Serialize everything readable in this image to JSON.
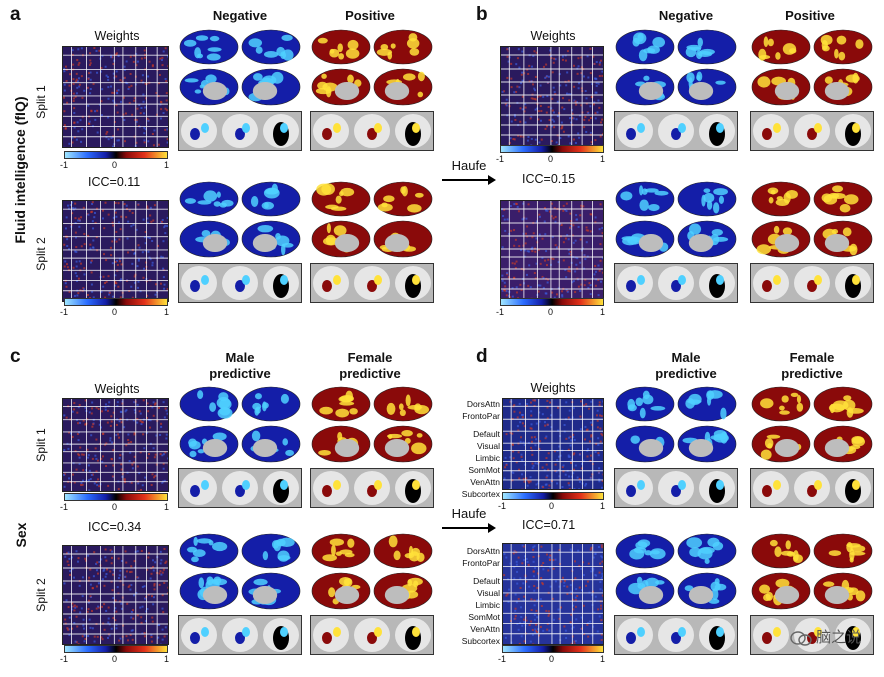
{
  "panels": [
    {
      "letter": "a",
      "col_heads": [
        "Negative",
        "Positive"
      ],
      "weights_title": "Weights",
      "icc": "ICC=0.11",
      "splits": [
        "Split 1",
        "Split 2"
      ],
      "ticks": [
        "-1",
        "0",
        "1"
      ],
      "network_labels": []
    },
    {
      "letter": "b",
      "col_heads": [
        "Negative",
        "Positive"
      ],
      "weights_title": "Weights",
      "icc": "ICC=0.15",
      "splits": [],
      "ticks": [
        "-1",
        "0",
        "1"
      ],
      "network_labels": []
    },
    {
      "letter": "c",
      "col_heads": [
        "Male\npredictive",
        "Female\npredictive"
      ],
      "weights_title": "Weights",
      "icc": "ICC=0.34",
      "splits": [
        "Split 1",
        "Split 2"
      ],
      "ticks": [
        "-1",
        "0",
        "1"
      ],
      "network_labels": []
    },
    {
      "letter": "d",
      "col_heads": [
        "Male\npredictive",
        "Female\npredictive"
      ],
      "weights_title": "Weights",
      "icc": "ICC=0.71",
      "splits": [],
      "ticks": [
        "-1",
        "0",
        "1"
      ],
      "network_labels": [
        "DorsAttn",
        "FrontoPar",
        "Default",
        "Visual",
        "Limbic",
        "SomMot",
        "VenAttn",
        "Subcortex"
      ]
    }
  ],
  "row_labels": {
    "top": "Fluid intelligence (fIQ)",
    "bottom": "Sex"
  },
  "arrows": [
    "Haufe",
    "Haufe"
  ],
  "watermark": "脑之说",
  "colors": {
    "neg_dark": "#141ea8",
    "neg_light": "#4fd0ff",
    "pos_dark": "#8a0a0a",
    "pos_light": "#ffe23a",
    "matrix_bg": "#2a1a5e",
    "grid": "#ffffff"
  }
}
